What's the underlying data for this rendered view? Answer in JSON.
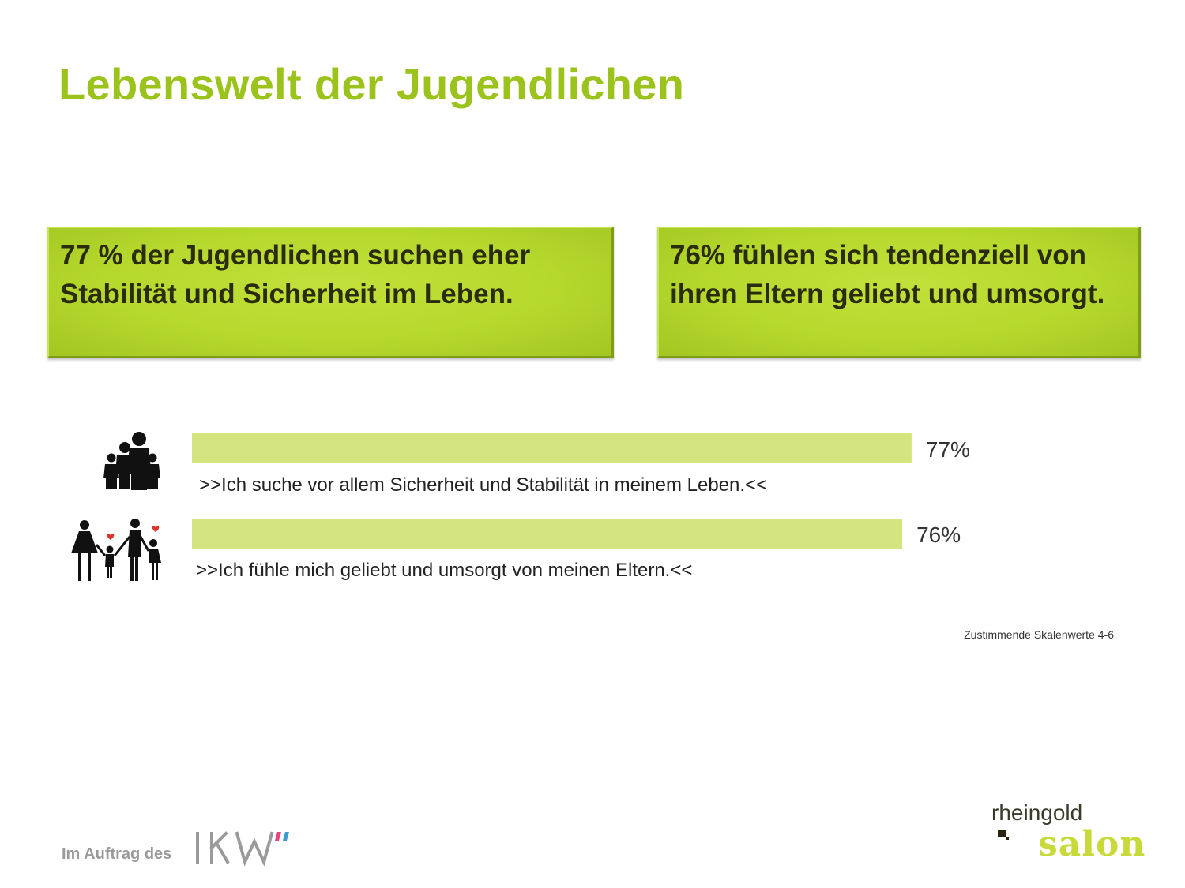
{
  "title": "Lebenswelt der Jugendlichen",
  "boxes": [
    {
      "line1": "77 % der Jugendlichen suchen eher",
      "line2": "Stabilität und Sicherheit im Leben."
    },
    {
      "line1": "76% fühlen sich tendenziell von",
      "line2": "ihren Eltern geliebt und umsorgt."
    }
  ],
  "chart_data": {
    "type": "bar",
    "orientation": "horizontal",
    "categories": [
      ">>Ich suche vor allem Sicherheit und Stabilität in meinem Leben.<<",
      ">>Ich fühle mich geliebt und umsorgt von meinen Eltern.<<"
    ],
    "values": [
      77,
      76
    ],
    "value_labels": [
      "77%",
      "76%"
    ],
    "xlim": [
      0,
      100
    ],
    "bar_color": "#d4e57f",
    "icons": [
      "family-group-icon",
      "family-holding-hands-icon"
    ],
    "note": "Zustimmende Skalenwerte 4-6"
  },
  "footer": {
    "commissioned_by": "Im Auftrag des",
    "partner_logo": "IKW",
    "brand_line1": "rheingold",
    "brand_line2": "salon"
  },
  "colors": {
    "accent": "#9bc31c",
    "box": "#b6d92e",
    "bar": "#d4e57f",
    "brand_salon": "#c7da3a"
  }
}
